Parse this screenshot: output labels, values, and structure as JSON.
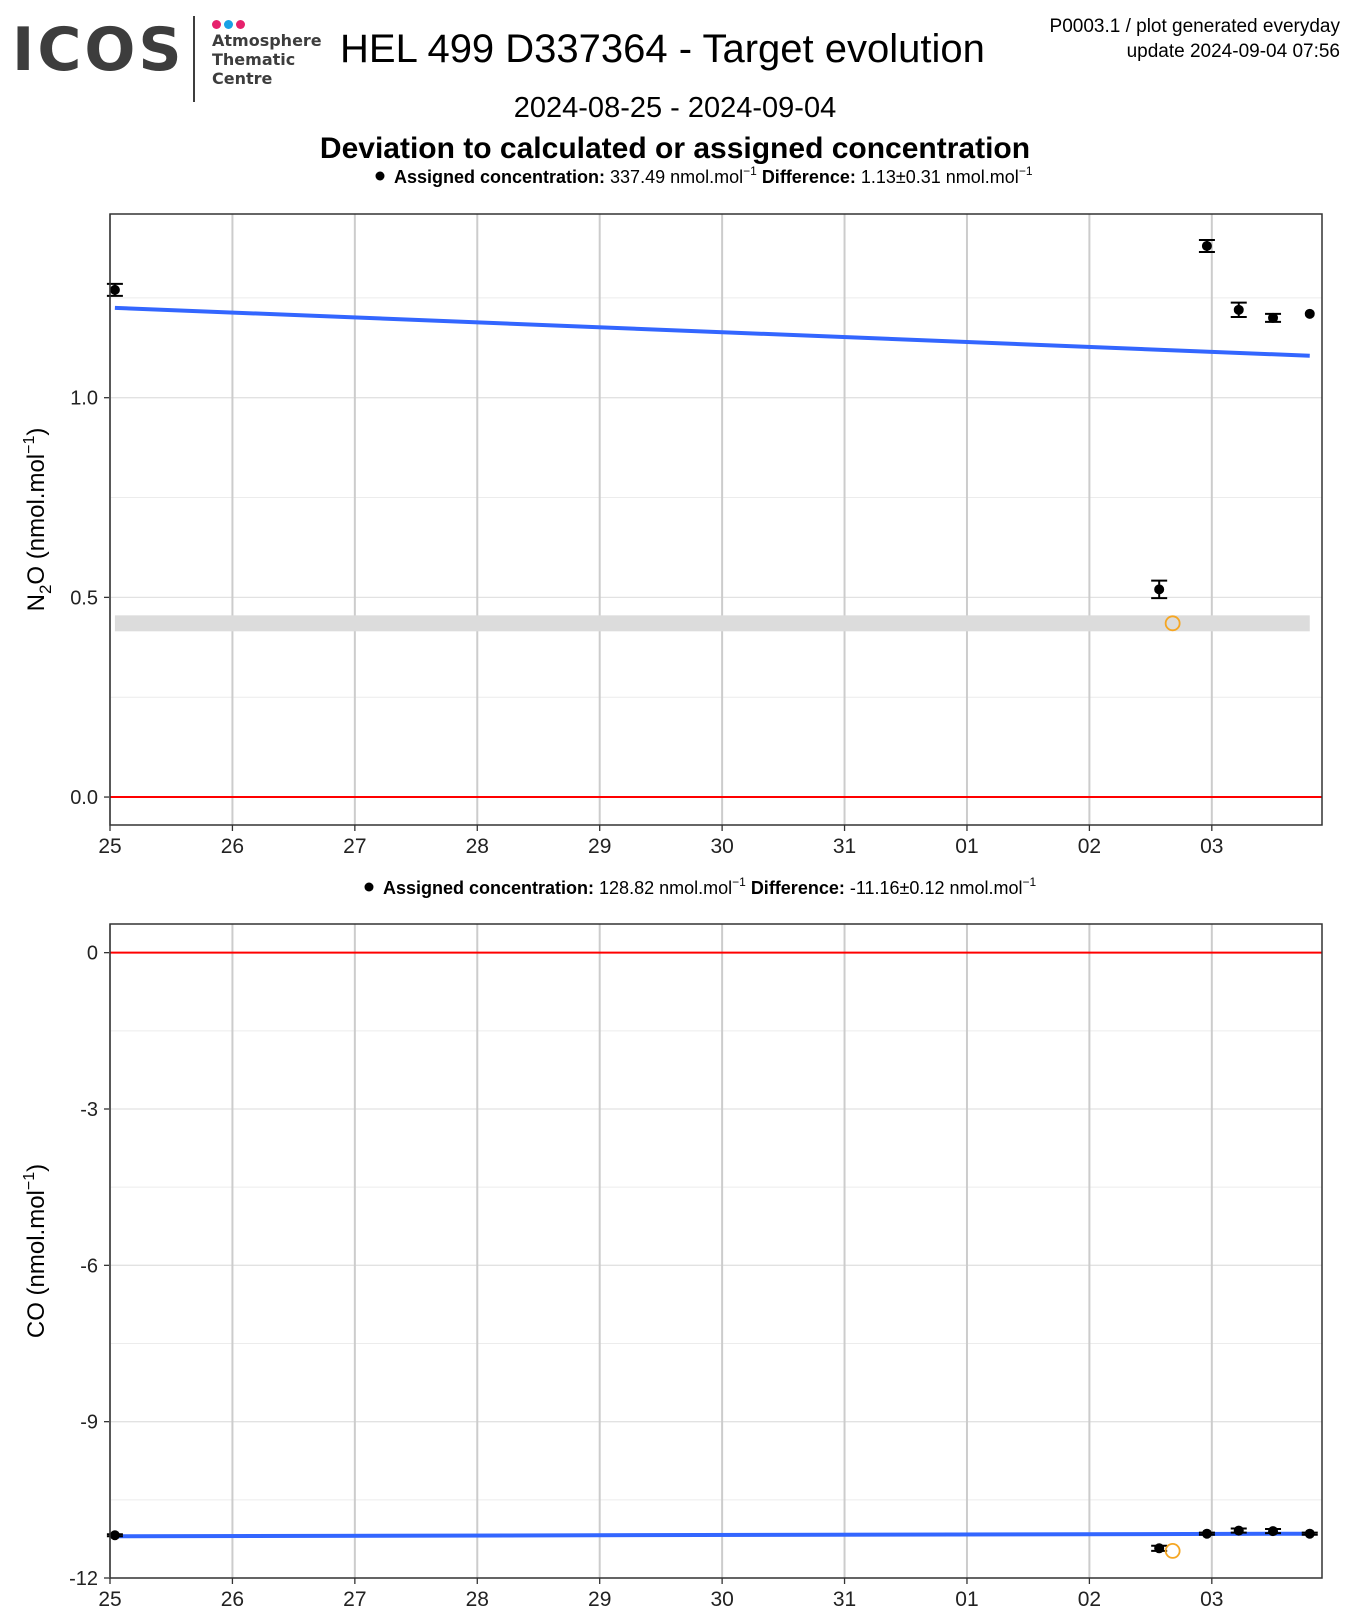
{
  "header": {
    "logo_word": "ICOS",
    "logo_lines": [
      "Atmosphere",
      "Thematic",
      "Centre"
    ],
    "logo_dot_colors": [
      "#e6216c",
      "#1aa1e5",
      "#e6216c"
    ],
    "title": "HEL 499 D337364 - Target evolution",
    "meta_line1": "P0003.1 / plot generated everyday",
    "meta_line2": "update  2024-09-04 07:56",
    "date_range": "2024-08-25 - 2024-09-04",
    "subtitle": "Deviation to calculated or assigned concentration"
  },
  "colors": {
    "points": "#000000",
    "trend": "#3366ff",
    "zero_line": "#ff0000",
    "highlight_point": "#f5a623",
    "band": "#dcdcdc",
    "grid": "#cccccc"
  },
  "chart_data": [
    {
      "type": "scatter",
      "legend": {
        "label1": "Assigned concentration:",
        "value1": "337.49 nmol.mol",
        "label2": "Difference:",
        "value2": "1.13±0.31 nmol.mol",
        "superscript": "−1"
      },
      "ylabel": "N2O (nmol.mol-1)",
      "ylabel_parts": {
        "main": "N",
        "sub": "2",
        "main2": "O (nmol.mol",
        "sup": "−1",
        "close": ")"
      },
      "xlim": [
        0,
        9.9
      ],
      "ylim": [
        -0.07,
        1.46
      ],
      "yticks": [
        0.0,
        0.5,
        1.0
      ],
      "ytick_labels": [
        "0.0",
        "0.5",
        "1.0"
      ],
      "yminor": [
        0.25,
        0.75,
        1.25
      ],
      "xticks": [
        0,
        1,
        2,
        3,
        4,
        5,
        6,
        7,
        8,
        9
      ],
      "xtick_labels": [
        "25",
        "26",
        "27",
        "28",
        "29",
        "30",
        "31",
        "01",
        "02",
        "03"
      ],
      "grid": true,
      "points": [
        {
          "x": 0.04,
          "y": 1.27,
          "err": 0.015
        },
        {
          "x": 8.57,
          "y": 0.52,
          "err": 0.022
        },
        {
          "x": 8.96,
          "y": 1.38,
          "err": 0.015
        },
        {
          "x": 9.22,
          "y": 1.22,
          "err": 0.018
        },
        {
          "x": 9.5,
          "y": 1.2,
          "err": 0.01
        },
        {
          "x": 9.8,
          "y": 1.21,
          "err": 0.0
        }
      ],
      "highlight": [
        {
          "x": 8.68,
          "y": 0.435
        }
      ],
      "trend": {
        "x": [
          0.04,
          9.8
        ],
        "y": [
          1.225,
          1.105
        ]
      },
      "band": {
        "x": [
          0.04,
          9.8
        ],
        "y": [
          0.415,
          0.455
        ]
      },
      "hline": 0
    },
    {
      "type": "scatter",
      "legend": {
        "label1": "Assigned concentration:",
        "value1": "128.82 nmol.mol",
        "label2": "Difference:",
        "value2": "-11.16±0.12 nmol.mol",
        "superscript": "−1"
      },
      "ylabel": "CO (nmol.mol-1)",
      "ylabel_parts": {
        "main": "CO (nmol.mol",
        "sub": "",
        "main2": "",
        "sup": "−1",
        "close": ")"
      },
      "xlim": [
        0,
        9.9
      ],
      "ylim": [
        -12.0,
        0.55
      ],
      "yticks": [
        -12,
        -9,
        -6,
        -3,
        0
      ],
      "ytick_labels": [
        "-12",
        "-9",
        "-6",
        "-3",
        "0"
      ],
      "yminor": [
        -10.5,
        -7.5,
        -4.5,
        -1.5
      ],
      "xticks": [
        0,
        1,
        2,
        3,
        4,
        5,
        6,
        7,
        8,
        9
      ],
      "xtick_labels": [
        "25",
        "26",
        "27",
        "28",
        "29",
        "30",
        "31",
        "01",
        "02",
        "03"
      ],
      "grid": true,
      "points": [
        {
          "x": 0.04,
          "y": -11.18,
          "err": 0.02
        },
        {
          "x": 8.57,
          "y": -11.43,
          "err": 0.05
        },
        {
          "x": 8.96,
          "y": -11.15,
          "err": 0.02
        },
        {
          "x": 9.22,
          "y": -11.09,
          "err": 0.04
        },
        {
          "x": 9.5,
          "y": -11.1,
          "err": 0.04
        },
        {
          "x": 9.8,
          "y": -11.15,
          "err": 0.02
        }
      ],
      "highlight": [
        {
          "x": 8.68,
          "y": -11.48
        }
      ],
      "trend": {
        "x": [
          0.04,
          9.8
        ],
        "y": [
          -11.2,
          -11.15
        ]
      },
      "hline": 0
    }
  ]
}
